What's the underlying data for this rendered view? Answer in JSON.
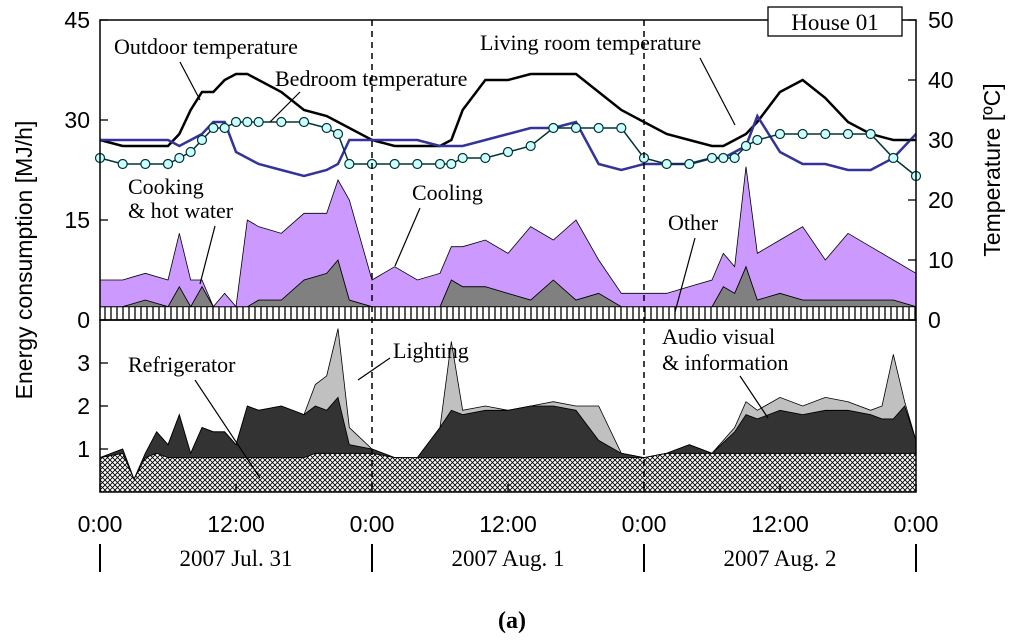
{
  "figure_label": "(a)",
  "chart_data": [
    {
      "id": "top",
      "type": "area+line",
      "title": "House 01",
      "ylabel_left": "Energy consumption [MJ/h]",
      "ylabel_right": "Temperature [ºC]",
      "ylim_left": [
        0,
        45
      ],
      "yticks_left": [
        0,
        15,
        30,
        45
      ],
      "ylim_right": [
        0,
        50
      ],
      "yticks_right": [
        0,
        10,
        20,
        30,
        40,
        50
      ],
      "x_hours": [
        0,
        2,
        4,
        6,
        7,
        8,
        9,
        10,
        11,
        12,
        13,
        14,
        16,
        18,
        20,
        21,
        22,
        24,
        26,
        28,
        30,
        31,
        32,
        34,
        36,
        38,
        40,
        42,
        44,
        46,
        48,
        50,
        52,
        54,
        55,
        56,
        57,
        58,
        60,
        62,
        64,
        66,
        68,
        70,
        72
      ],
      "series": [
        {
          "name": "Other",
          "kind": "area",
          "stack": true,
          "color": "#ffffff",
          "pattern": "vstripe",
          "values": [
            2,
            2,
            2,
            2,
            2,
            2,
            2,
            2,
            2,
            2,
            2,
            2,
            2,
            2,
            2,
            2,
            2,
            2,
            2,
            2,
            2,
            2,
            2,
            2,
            2,
            2,
            2,
            2,
            2,
            2,
            2,
            2,
            2,
            2,
            2,
            2,
            2,
            2,
            2,
            2,
            2,
            2,
            2,
            2,
            2
          ]
        },
        {
          "name": "Cooking & hot water",
          "kind": "area",
          "stack": true,
          "color": "#808080",
          "values": [
            0,
            0,
            1,
            0,
            3,
            0,
            3,
            0,
            0,
            0,
            0,
            1,
            1,
            4,
            5,
            7,
            1,
            0,
            0,
            0,
            0,
            4,
            3,
            3,
            2,
            1,
            4,
            1,
            2,
            0,
            0,
            0,
            0,
            0,
            3,
            2,
            6,
            1,
            2,
            1,
            1,
            1,
            1,
            1,
            0
          ]
        },
        {
          "name": "Cooling",
          "kind": "area",
          "stack": true,
          "color": "#cc99ff",
          "values": [
            4,
            4,
            4,
            4,
            8,
            4,
            1,
            0,
            2,
            0,
            13,
            11,
            10,
            10,
            9,
            12,
            15,
            4,
            6,
            4,
            5,
            5,
            6,
            7,
            6,
            11,
            6,
            12,
            5,
            2,
            2,
            2,
            3,
            4,
            5,
            4,
            15,
            7,
            8,
            11,
            6,
            10,
            8,
            6,
            5
          ]
        },
        {
          "name": "Outdoor temperature",
          "kind": "line",
          "axis": "right",
          "color": "#000000",
          "values": [
            30,
            29,
            29,
            29,
            31,
            35,
            38,
            38,
            40,
            41,
            41,
            40,
            38,
            35,
            34,
            33,
            32,
            30,
            29,
            29,
            29,
            30,
            35,
            40,
            40,
            41,
            41,
            41,
            38,
            35,
            33,
            31,
            30,
            29,
            29,
            30,
            31,
            33,
            38,
            40,
            37,
            33,
            31,
            30,
            30
          ]
        },
        {
          "name": "Living room temperature",
          "kind": "line",
          "axis": "right",
          "color": "#333399",
          "values": [
            30,
            30,
            30,
            30,
            29,
            30,
            31,
            33,
            33,
            28,
            27,
            26,
            25,
            24,
            25,
            26,
            30,
            30,
            30,
            30,
            29,
            29,
            29,
            30,
            31,
            32,
            32,
            33,
            26,
            25,
            26,
            26,
            26,
            27,
            27,
            28,
            29,
            34,
            28,
            26,
            26,
            25,
            25,
            27,
            31
          ]
        },
        {
          "name": "Bedroom temperature",
          "kind": "line",
          "axis": "right",
          "color": "#003333",
          "marker": "circle",
          "markerfill": "#ccffff",
          "values": [
            27,
            26,
            26,
            26,
            27,
            28,
            30,
            32,
            32,
            33,
            33,
            33,
            33,
            33,
            32,
            31,
            26,
            26,
            26,
            26,
            26,
            26,
            27,
            27,
            28,
            29,
            32,
            32,
            32,
            32,
            27,
            26,
            26,
            27,
            27,
            27,
            29,
            30,
            31,
            31,
            31,
            31,
            31,
            27,
            24
          ]
        }
      ],
      "annotations": [
        "Outdoor temperature",
        "Bedroom temperature",
        "Living room temperature",
        "Cooking",
        "& hot water",
        "Cooling",
        "Other"
      ]
    },
    {
      "id": "bottom",
      "type": "area",
      "ylim": [
        0,
        4
      ],
      "yticks": [
        1,
        2,
        3
      ],
      "x_hours": [
        0,
        2,
        3,
        4,
        5,
        6,
        7,
        8,
        9,
        10,
        11,
        12,
        13,
        14,
        16,
        18,
        19,
        20,
        21,
        22,
        24,
        26,
        28,
        30,
        31,
        32,
        34,
        36,
        38,
        40,
        42,
        44,
        46,
        48,
        50,
        52,
        54,
        56,
        57,
        58,
        60,
        62,
        64,
        66,
        68,
        69,
        70,
        71,
        72
      ],
      "series": [
        {
          "name": "Refrigerator",
          "kind": "area",
          "stack": true,
          "color": "#ffffff",
          "pattern": "crosshatch",
          "values": [
            0.8,
            0.9,
            0.3,
            0.8,
            0.9,
            0.8,
            0.8,
            0.8,
            0.8,
            0.8,
            0.8,
            0.8,
            0.8,
            0.8,
            0.8,
            0.8,
            0.9,
            0.9,
            0.9,
            0.9,
            0.9,
            0.8,
            0.8,
            0.8,
            0.8,
            0.8,
            0.8,
            0.8,
            0.8,
            0.8,
            0.8,
            0.8,
            0.8,
            0.8,
            0.9,
            0.9,
            0.9,
            0.9,
            0.9,
            0.9,
            0.9,
            0.9,
            0.9,
            0.9,
            0.9,
            0.9,
            0.9,
            0.9,
            0.9
          ]
        },
        {
          "name": "Audio visual & information",
          "kind": "area",
          "stack": true,
          "color": "#333333",
          "values": [
            0,
            0.1,
            0,
            0.1,
            0.5,
            0.3,
            1.0,
            0.1,
            0.7,
            0.6,
            0.6,
            0.3,
            1.2,
            1.1,
            1.2,
            1.0,
            1.1,
            1.0,
            1.3,
            0.2,
            0.1,
            0,
            0,
            0.7,
            1.1,
            1.0,
            1.1,
            1.1,
            1.2,
            1.2,
            1.1,
            0.4,
            0.1,
            0,
            0,
            0.2,
            0,
            0.5,
            0.9,
            0.8,
            1.0,
            0.9,
            1.0,
            1.0,
            0.9,
            0.8,
            0.8,
            1.1,
            0.3
          ]
        },
        {
          "name": "Lighting",
          "kind": "area",
          "stack": true,
          "color": "#c0c0c0",
          "values": [
            0,
            0,
            0,
            0,
            0,
            0,
            0,
            0,
            0,
            0,
            0,
            0,
            0,
            0,
            0,
            0,
            0.5,
            0.8,
            1.6,
            0.4,
            0,
            0,
            0,
            0,
            1.6,
            0.1,
            0.1,
            0,
            0,
            0.1,
            0.1,
            0.8,
            0,
            0,
            0,
            0,
            0,
            0.1,
            0.3,
            0.2,
            0.3,
            0.2,
            0.3,
            0.2,
            0.1,
            0.3,
            1.5,
            0.1,
            0
          ]
        }
      ],
      "annotations": [
        "Refrigerator",
        "Lighting",
        "Audio visual",
        "& information"
      ]
    }
  ],
  "x_axis": {
    "ticks": [
      "0:00",
      "12:00",
      "0:00",
      "12:00",
      "0:00",
      "12:00",
      "0:00"
    ],
    "tick_hours": [
      0,
      12,
      24,
      36,
      48,
      60,
      72
    ],
    "day_boundaries": [
      24,
      48
    ],
    "dates": [
      "2007 Jul. 31",
      "2007 Aug. 1",
      "2007 Aug. 2"
    ]
  }
}
